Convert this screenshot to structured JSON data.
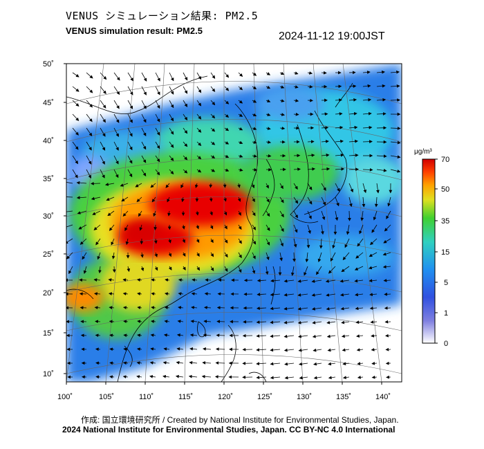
{
  "header": {
    "title_ja": "VENUS シミュレーション結果: PM2.5",
    "title_en": "VENUS simulation result: PM2.5",
    "timestamp": "2024-11-12 19:00JST"
  },
  "map": {
    "lat_labels": [
      "50˚",
      "45˚",
      "40˚",
      "35˚",
      "30˚",
      "25˚",
      "20˚",
      "15˚",
      "10˚"
    ],
    "lon_labels": [
      "100˚",
      "105˚",
      "110˚",
      "115˚",
      "120˚",
      "125˚",
      "130˚",
      "135˚",
      "140˚"
    ]
  },
  "colorbar": {
    "unit": "μg/m³",
    "labels": [
      "70",
      "50",
      "35",
      "15",
      "5",
      "1",
      "0"
    ],
    "colors": [
      "#d40000",
      "#ff8000",
      "#ffe000",
      "#50d000",
      "#30c8c0",
      "#1e6ef0",
      "#4040c0",
      "#ffffff"
    ]
  },
  "footer": {
    "credit_line": "作成: 国立環境研究所 / Created by National Institute for Environmental Studies, Japan.",
    "copyright_line": "2024 National Institute for Environmental Studies, Japan. CC BY-NC 4.0 International"
  }
}
